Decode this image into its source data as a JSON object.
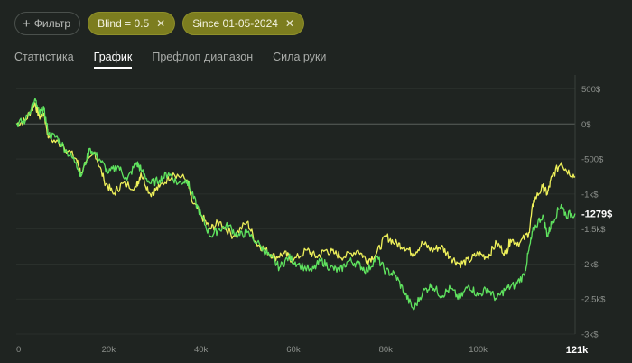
{
  "filters": {
    "add_label": "Фильтр",
    "active": [
      {
        "label": "Blind = 0.5"
      },
      {
        "label": "Since 01-05-2024"
      }
    ]
  },
  "tabs": [
    {
      "label": "Статистика",
      "active": false
    },
    {
      "label": "График",
      "active": true
    },
    {
      "label": "Префлоп диапазон",
      "active": false
    },
    {
      "label": "Сила руки",
      "active": false
    }
  ],
  "colors": {
    "background": "#1f2421",
    "chip_active": "#7c7d1f",
    "series_yellow": "#eef05a",
    "series_green": "#5fe35f"
  },
  "chart_data": {
    "type": "line",
    "xlim": [
      0,
      121000
    ],
    "ylim": [
      -3000,
      700
    ],
    "x_ticks": [
      "0",
      "20k",
      "40k",
      "60k",
      "80k",
      "100k"
    ],
    "x_max_label": "121k",
    "y_ticks": [
      "500$",
      "0$",
      "-500$",
      "-1k$",
      "-1.5k$",
      "-2k$",
      "-2.5k$",
      "-3k$"
    ],
    "y_tick_values": [
      500,
      0,
      -500,
      -1000,
      -1500,
      -2000,
      -2500,
      -3000
    ],
    "current_value_label": "-1279$",
    "current_value": -1279,
    "series": [
      {
        "color": "#eef05a",
        "points": [
          [
            0,
            0
          ],
          [
            2000,
            50
          ],
          [
            4000,
            300
          ],
          [
            5000,
            100
          ],
          [
            6000,
            150
          ],
          [
            7000,
            -200
          ],
          [
            10000,
            -300
          ],
          [
            13000,
            -500
          ],
          [
            14000,
            -700
          ],
          [
            17000,
            -400
          ],
          [
            19000,
            -800
          ],
          [
            21000,
            -1000
          ],
          [
            23000,
            -850
          ],
          [
            26000,
            -900
          ],
          [
            27000,
            -700
          ],
          [
            29000,
            -1000
          ],
          [
            31000,
            -900
          ],
          [
            34000,
            -700
          ],
          [
            37000,
            -800
          ],
          [
            38000,
            -1100
          ],
          [
            40000,
            -1300
          ],
          [
            42000,
            -1500
          ],
          [
            44000,
            -1400
          ],
          [
            47000,
            -1600
          ],
          [
            50000,
            -1400
          ],
          [
            52000,
            -1700
          ],
          [
            54000,
            -1800
          ],
          [
            56000,
            -1900
          ],
          [
            58000,
            -1850
          ],
          [
            60000,
            -1950
          ],
          [
            63000,
            -1800
          ],
          [
            65000,
            -1900
          ],
          [
            67000,
            -1800
          ],
          [
            69000,
            -1850
          ],
          [
            71000,
            -1900
          ],
          [
            74000,
            -1800
          ],
          [
            76000,
            -1950
          ],
          [
            78000,
            -1850
          ],
          [
            80000,
            -1600
          ],
          [
            82000,
            -1700
          ],
          [
            84000,
            -1750
          ],
          [
            86000,
            -1850
          ],
          [
            88000,
            -1700
          ],
          [
            90000,
            -1800
          ],
          [
            92000,
            -1750
          ],
          [
            94000,
            -1900
          ],
          [
            96000,
            -2000
          ],
          [
            98000,
            -1950
          ],
          [
            100000,
            -1850
          ],
          [
            102000,
            -1900
          ],
          [
            104000,
            -1700
          ],
          [
            106000,
            -1850
          ],
          [
            107000,
            -1650
          ],
          [
            109000,
            -1700
          ],
          [
            111000,
            -1550
          ],
          [
            112000,
            -1100
          ],
          [
            114000,
            -900
          ],
          [
            115000,
            -1000
          ],
          [
            116000,
            -750
          ],
          [
            118000,
            -550
          ],
          [
            119000,
            -650
          ],
          [
            121000,
            -750
          ]
        ]
      },
      {
        "color": "#5fe35f",
        "points": [
          [
            0,
            0
          ],
          [
            2000,
            50
          ],
          [
            4000,
            350
          ],
          [
            5000,
            150
          ],
          [
            6000,
            200
          ],
          [
            7000,
            -150
          ],
          [
            9000,
            -200
          ],
          [
            11000,
            -400
          ],
          [
            13000,
            -550
          ],
          [
            14000,
            -750
          ],
          [
            16000,
            -350
          ],
          [
            18000,
            -500
          ],
          [
            20000,
            -700
          ],
          [
            22000,
            -600
          ],
          [
            24000,
            -800
          ],
          [
            26000,
            -550
          ],
          [
            27000,
            -650
          ],
          [
            29000,
            -850
          ],
          [
            31000,
            -800
          ],
          [
            33000,
            -700
          ],
          [
            35000,
            -850
          ],
          [
            37000,
            -800
          ],
          [
            38000,
            -1000
          ],
          [
            40000,
            -1300
          ],
          [
            42000,
            -1600
          ],
          [
            44000,
            -1500
          ],
          [
            46000,
            -1450
          ],
          [
            48000,
            -1600
          ],
          [
            50000,
            -1550
          ],
          [
            53000,
            -1750
          ],
          [
            55000,
            -1900
          ],
          [
            57000,
            -2050
          ],
          [
            59000,
            -1900
          ],
          [
            61000,
            -2000
          ],
          [
            64000,
            -2100
          ],
          [
            66000,
            -1950
          ],
          [
            68000,
            -2050
          ],
          [
            70000,
            -2100
          ],
          [
            72000,
            -1950
          ],
          [
            74000,
            -2000
          ],
          [
            76000,
            -2100
          ],
          [
            78000,
            -1900
          ],
          [
            80000,
            -2100
          ],
          [
            82000,
            -2150
          ],
          [
            84000,
            -2400
          ],
          [
            86000,
            -2650
          ],
          [
            88000,
            -2400
          ],
          [
            90000,
            -2300
          ],
          [
            92000,
            -2450
          ],
          [
            94000,
            -2350
          ],
          [
            96000,
            -2500
          ],
          [
            98000,
            -2300
          ],
          [
            100000,
            -2450
          ],
          [
            102000,
            -2350
          ],
          [
            104000,
            -2500
          ],
          [
            106000,
            -2350
          ],
          [
            108000,
            -2300
          ],
          [
            110000,
            -2150
          ],
          [
            111000,
            -1800
          ],
          [
            112000,
            -1500
          ],
          [
            114000,
            -1300
          ],
          [
            115000,
            -1600
          ],
          [
            116000,
            -1400
          ],
          [
            118000,
            -1150
          ],
          [
            119000,
            -1300
          ],
          [
            121000,
            -1279
          ]
        ]
      }
    ]
  }
}
